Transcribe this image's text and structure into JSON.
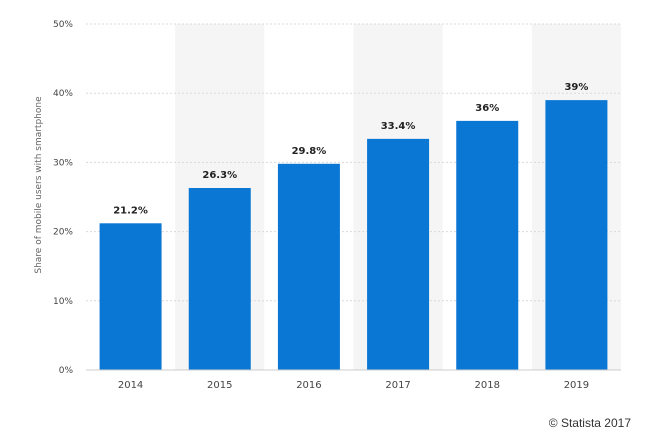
{
  "chart_data": {
    "type": "bar",
    "categories": [
      "2014",
      "2015",
      "2016",
      "2017",
      "2018",
      "2019"
    ],
    "values": [
      21.2,
      26.3,
      29.8,
      33.4,
      36,
      39
    ],
    "data_labels": [
      "21.2%",
      "26.3%",
      "29.8%",
      "33.4%",
      "36%",
      "39%"
    ],
    "ylabel": "Share of mobile users with smartphone",
    "ylim": [
      0,
      50
    ],
    "yticks": [
      0,
      10,
      20,
      30,
      40,
      50
    ],
    "ytick_labels": [
      "0%",
      "10%",
      "20%",
      "30%",
      "40%",
      "50%"
    ],
    "grid": true,
    "bar_color": "#0a77d5",
    "band_color": "#f5f5f5"
  },
  "footer": {
    "credit": "© Statista 2017"
  }
}
